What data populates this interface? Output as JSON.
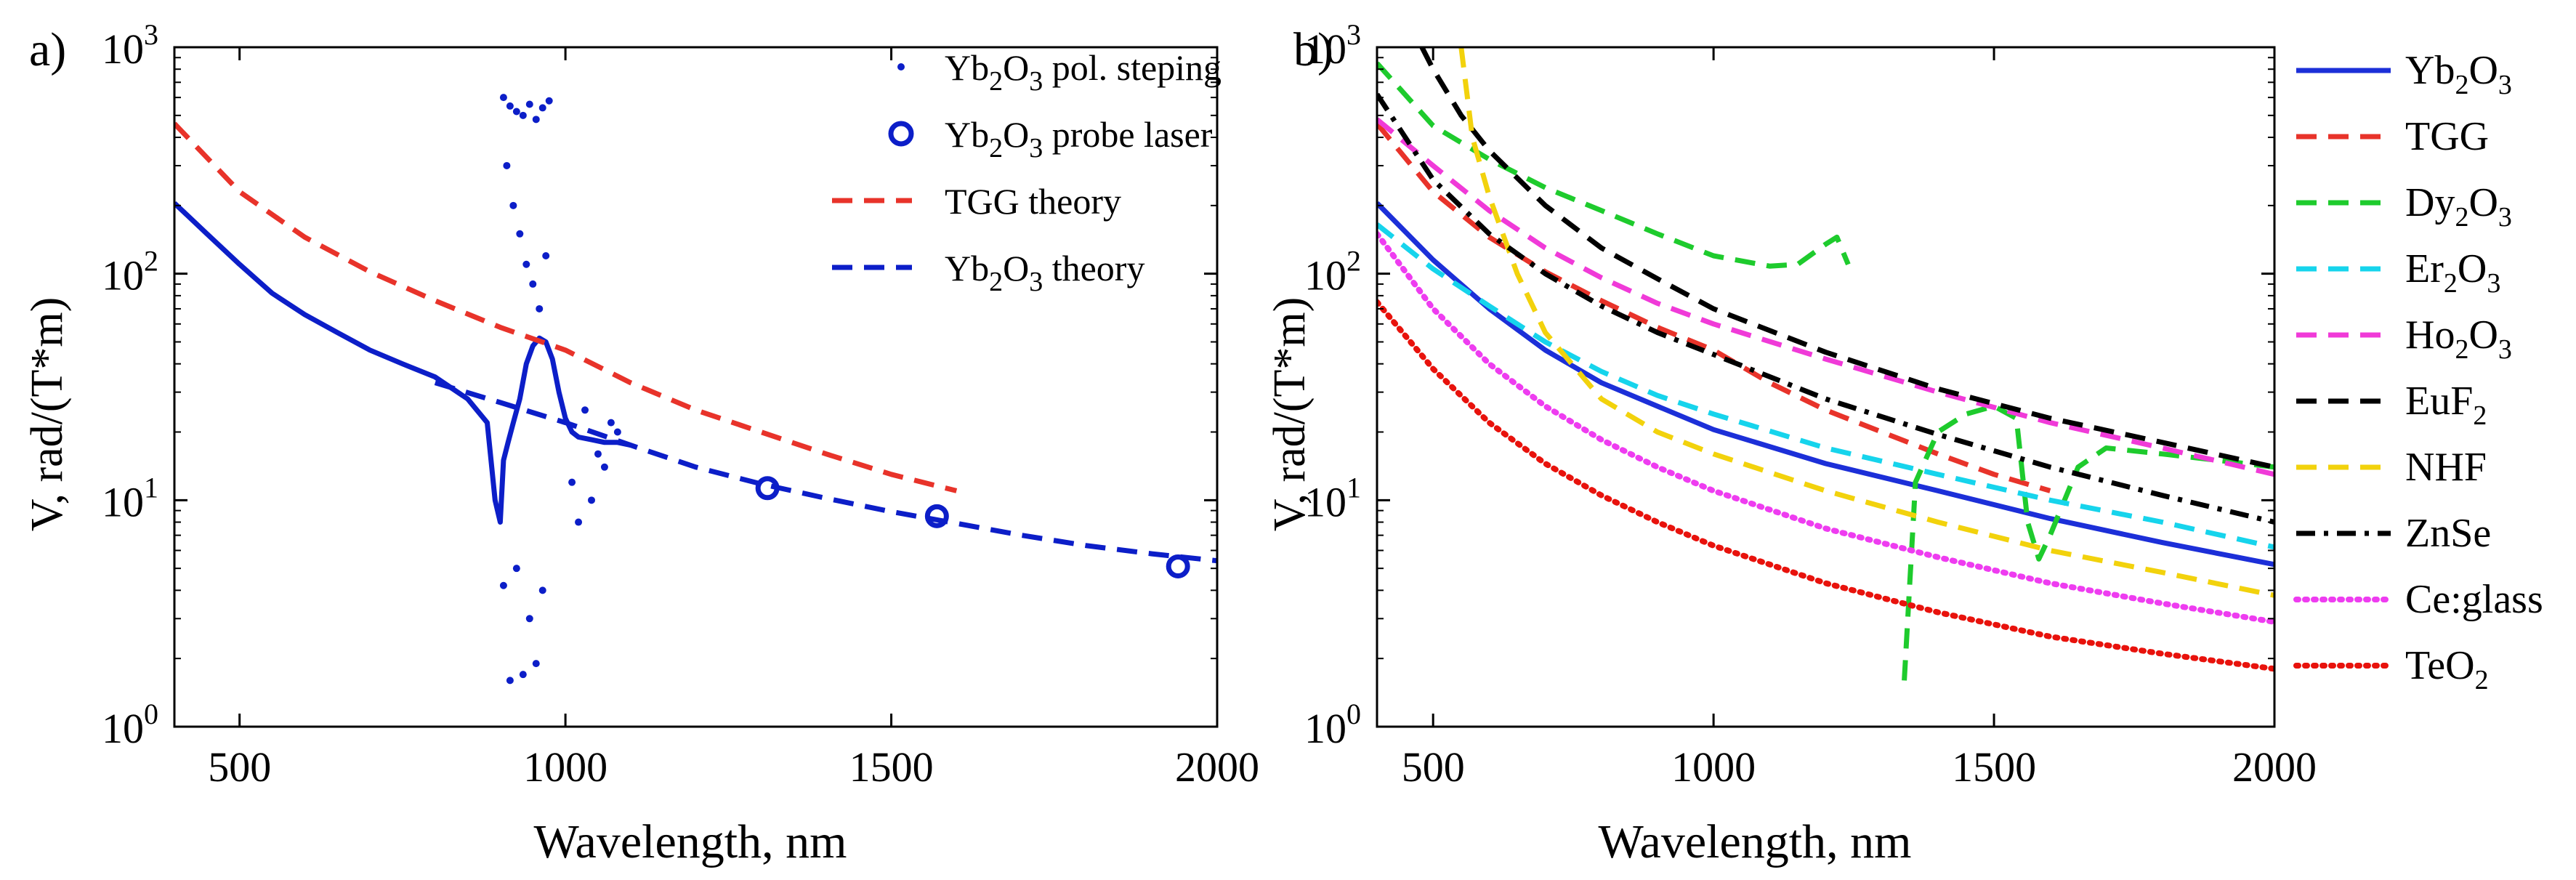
{
  "chart_data": [
    {
      "panel_label": "a)",
      "type": "line",
      "xlabel": "Wavelength, nm",
      "ylabel": "V, rad/(T*m)",
      "xlim": [
        400,
        2000
      ],
      "ylim": [
        1,
        1000
      ],
      "yscale": "log",
      "xticks": [
        500,
        1000,
        1500,
        2000
      ],
      "yticks": [
        {
          "value": 1,
          "base": "10",
          "exp": "0"
        },
        {
          "value": 10,
          "base": "10",
          "exp": "1"
        },
        {
          "value": 100,
          "base": "10",
          "exp": "2"
        },
        {
          "value": 1000,
          "base": "10",
          "exp": "3"
        }
      ],
      "legend_position": "top-right",
      "series": [
        {
          "name": "Yb2O3 pol. steping",
          "legend": {
            "pre": "Yb",
            "sub1": "2",
            "mid": "O",
            "sub2": "3",
            "post": " pol. steping"
          },
          "style": "dots",
          "color": "#0c1ec8",
          "x": [
            400,
            450,
            500,
            550,
            600,
            650,
            700,
            750,
            800,
            850,
            880,
            892,
            900,
            905,
            912,
            920,
            930,
            940,
            950,
            960,
            970,
            980,
            990,
            1000,
            1010,
            1020,
            1040,
            1060,
            1080,
            1100
          ],
          "y": [
            205,
            150,
            110,
            82,
            66,
            55,
            46,
            40,
            35,
            28,
            22,
            10,
            8,
            15,
            18,
            22,
            28,
            40,
            48,
            52,
            50,
            42,
            30,
            23,
            20,
            19,
            18.5,
            18,
            18,
            17.5
          ],
          "scatter_x": [
            905,
            915,
            925,
            935,
            945,
            955,
            965,
            975,
            910,
            920,
            930,
            940,
            950,
            960,
            970,
            925,
            945,
            965,
            915,
            935,
            955,
            905,
            1020,
            1040,
            1060,
            1030,
            1070,
            1050,
            1010,
            1080
          ],
          "scatter_y": [
            600,
            550,
            520,
            500,
            560,
            480,
            540,
            580,
            300,
            200,
            150,
            110,
            90,
            70,
            120,
            5,
            3,
            4,
            1.6,
            1.7,
            1.9,
            4.2,
            8,
            10,
            14,
            25,
            22,
            16,
            12,
            20
          ]
        },
        {
          "name": "Yb2O3 probe laser",
          "legend": {
            "pre": "Yb",
            "sub1": "2",
            "mid": "O",
            "sub2": "3",
            "post": " probe laser"
          },
          "style": "circles",
          "color": "#0c1ec8",
          "x": [
            1310,
            1570,
            1940
          ],
          "y": [
            11.3,
            8.5,
            5.1
          ]
        },
        {
          "name": "TGG theory",
          "legend": {
            "pre": "TGG theory",
            "sub1": "",
            "mid": "",
            "sub2": "",
            "post": ""
          },
          "style": "dashed",
          "color": "#e8332a",
          "x": [
            400,
            500,
            600,
            700,
            800,
            900,
            1000,
            1100,
            1200,
            1300,
            1400,
            1500,
            1600
          ],
          "y": [
            460,
            230,
            145,
            102,
            76,
            58,
            46,
            33,
            25,
            20,
            16,
            13,
            11
          ]
        },
        {
          "name": "Yb2O3 theory",
          "legend": {
            "pre": "Yb",
            "sub1": "2",
            "mid": "O",
            "sub2": "3",
            "post": " theory"
          },
          "style": "dashed",
          "color": "#0c1ec8",
          "x": [
            800,
            900,
            1000,
            1100,
            1200,
            1300,
            1400,
            1500,
            1600,
            1700,
            1800,
            1900,
            2000
          ],
          "y": [
            33,
            27,
            22,
            17.5,
            14,
            11.8,
            10.2,
            8.9,
            7.9,
            7,
            6.3,
            5.8,
            5.4
          ]
        }
      ]
    },
    {
      "panel_label": "b)",
      "type": "line",
      "xlabel": "Wavelength, nm",
      "ylabel": "V, rad/(T*m)",
      "xlim": [
        400,
        2000
      ],
      "ylim": [
        1,
        1000
      ],
      "yscale": "log",
      "xticks": [
        500,
        1000,
        1500,
        2000
      ],
      "yticks": [
        {
          "value": 1,
          "base": "10",
          "exp": "0"
        },
        {
          "value": 10,
          "base": "10",
          "exp": "1"
        },
        {
          "value": 100,
          "base": "10",
          "exp": "2"
        },
        {
          "value": 1000,
          "base": "10",
          "exp": "3"
        }
      ],
      "legend_position": "outside-right",
      "series": [
        {
          "name": "Yb2O3",
          "legend": {
            "pre": "Yb",
            "sub1": "2",
            "mid": "O",
            "sub2": "3",
            "post": ""
          },
          "style": "solid",
          "color": "#1c2fd8",
          "x": [
            400,
            500,
            600,
            700,
            800,
            900,
            1000,
            1200,
            1400,
            1600,
            1800,
            2000
          ],
          "y": [
            205,
            115,
            70,
            46,
            33,
            26,
            20.5,
            14.5,
            11,
            8.3,
            6.5,
            5.2
          ]
        },
        {
          "name": "TGG",
          "legend": {
            "pre": "TGG",
            "sub1": "",
            "mid": "",
            "sub2": "",
            "post": ""
          },
          "style": "dashed",
          "color": "#e8332a",
          "x": [
            400,
            500,
            600,
            700,
            800,
            900,
            1000,
            1100,
            1200,
            1300,
            1400,
            1500,
            1600
          ],
          "y": [
            460,
            230,
            145,
            102,
            76,
            58,
            46,
            33,
            25,
            20,
            16,
            13,
            11
          ]
        },
        {
          "name": "Dy2O3",
          "legend": {
            "pre": "Dy",
            "sub1": "2",
            "mid": "O",
            "sub2": "3",
            "post": ""
          },
          "style": "dashed",
          "color": "#1ecb2d",
          "x": [
            400,
            500,
            600,
            700,
            800,
            900,
            1000,
            1100,
            1150,
            1200,
            1220,
            1240
          ],
          "y": [
            850,
            450,
            320,
            240,
            190,
            150,
            120,
            108,
            110,
            135,
            145,
            110
          ],
          "x2": [
            1340,
            1360,
            1400,
            1450,
            1500,
            1540,
            1560,
            1580,
            1600,
            1650,
            1700,
            1800,
            1900,
            2000
          ],
          "y2": [
            1.6,
            12,
            20,
            24,
            26,
            23,
            8,
            5.5,
            7,
            14,
            17,
            16,
            15,
            14
          ]
        },
        {
          "name": "Er2O3",
          "legend": {
            "pre": "Er",
            "sub1": "2",
            "mid": "O",
            "sub2": "3",
            "post": ""
          },
          "style": "dashed",
          "color": "#16d4ec",
          "x": [
            400,
            500,
            600,
            700,
            800,
            900,
            1000,
            1200,
            1400,
            1600,
            1800,
            2000
          ],
          "y": [
            165,
            105,
            72,
            50,
            37,
            29,
            24,
            17,
            13,
            10,
            8,
            6.2
          ]
        },
        {
          "name": "Ho2O3",
          "legend": {
            "pre": "Ho",
            "sub1": "2",
            "mid": "O",
            "sub2": "3",
            "post": ""
          },
          "style": "dashed",
          "color": "#f03ad8",
          "x": [
            400,
            500,
            600,
            700,
            800,
            900,
            1000,
            1200,
            1400,
            1600,
            1800,
            2000
          ],
          "y": [
            480,
            300,
            190,
            130,
            96,
            74,
            60,
            42,
            30,
            22,
            17,
            13
          ]
        },
        {
          "name": "EuF2",
          "legend": {
            "pre": "EuF",
            "sub1": "2",
            "mid": "",
            "sub2": "",
            "post": ""
          },
          "style": "dashed",
          "color": "#000000",
          "x": [
            480,
            500,
            550,
            600,
            700,
            800,
            900,
            1000,
            1200,
            1400,
            1600,
            1800,
            2000
          ],
          "y": [
            1000,
            800,
            500,
            350,
            200,
            130,
            95,
            70,
            45,
            31,
            23,
            18,
            14
          ]
        },
        {
          "name": "NHF",
          "legend": {
            "pre": "NHF",
            "sub1": "",
            "mid": "",
            "sub2": "",
            "post": ""
          },
          "style": "dashed",
          "color": "#f2d20c",
          "x": [
            550,
            570,
            600,
            650,
            700,
            800,
            900,
            1000,
            1200,
            1400,
            1600,
            1800,
            2000
          ],
          "y": [
            1000,
            400,
            220,
            100,
            55,
            28,
            20,
            16,
            11,
            8,
            6,
            4.8,
            3.8
          ]
        },
        {
          "name": "ZnSe",
          "legend": {
            "pre": "ZnSe",
            "sub1": "",
            "mid": "",
            "sub2": "",
            "post": ""
          },
          "style": "dashdot",
          "color": "#000000",
          "x": [
            400,
            500,
            600,
            700,
            800,
            900,
            1000,
            1200,
            1400,
            1600,
            1800,
            2000
          ],
          "y": [
            620,
            260,
            150,
            100,
            72,
            55,
            44,
            28,
            19.5,
            14,
            10.5,
            8
          ]
        },
        {
          "name": "Ce:glass",
          "legend": {
            "pre": "Ce:glass",
            "sub1": "",
            "mid": "",
            "sub2": "",
            "post": ""
          },
          "style": "dotted",
          "color": "#ee3cf0",
          "x": [
            400,
            500,
            600,
            700,
            800,
            900,
            1000,
            1200,
            1400,
            1600,
            1800,
            2000
          ],
          "y": [
            150,
            70,
            40,
            26,
            18.5,
            14,
            11,
            7.5,
            5.6,
            4.3,
            3.5,
            2.9
          ]
        },
        {
          "name": "TeO2",
          "legend": {
            "pre": "TeO",
            "sub1": "2",
            "mid": "",
            "sub2": "",
            "post": ""
          },
          "style": "dotted",
          "color": "#e8120c",
          "x": [
            400,
            500,
            600,
            700,
            800,
            900,
            1000,
            1200,
            1400,
            1600,
            1800,
            2000
          ],
          "y": [
            75,
            38,
            22,
            14.5,
            10.5,
            8,
            6.3,
            4.3,
            3.2,
            2.5,
            2.1,
            1.8
          ]
        }
      ]
    }
  ]
}
